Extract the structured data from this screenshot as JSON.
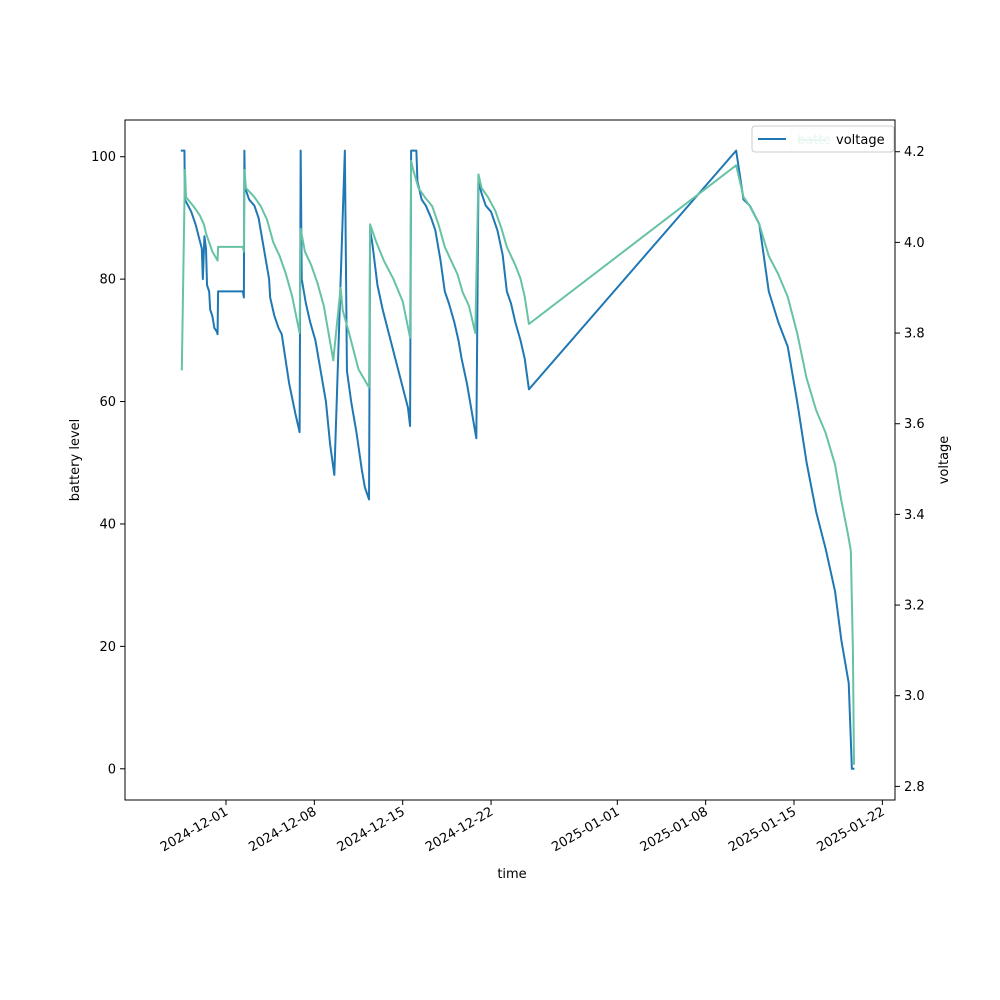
{
  "chart_data": {
    "type": "line",
    "xlabel": "time",
    "ylabel_left": "battery level",
    "ylabel_right": "voltage",
    "x_tick_labels": [
      "2024-12-01",
      "2024-12-08",
      "2024-12-15",
      "2024-12-22",
      "2025-01-01",
      "2025-01-08",
      "2025-01-15",
      "2025-01-22"
    ],
    "y_left_ticks": [
      0,
      20,
      40,
      60,
      80,
      100
    ],
    "y_right_ticks": [
      2.8,
      3.0,
      3.2,
      3.4,
      3.6,
      3.8,
      4.0,
      4.2
    ],
    "ylim_left": [
      -5.1,
      106
    ],
    "ylim_right": [
      2.77,
      4.27
    ],
    "xlim": [
      "2024-11-23",
      "2025-01-23"
    ],
    "grid": false,
    "legends": [
      {
        "position": "top-right",
        "entries": [
          "battery"
        ],
        "occluded": true
      },
      {
        "position": "top-right",
        "entries": [
          "voltage"
        ]
      }
    ],
    "series": [
      {
        "name": "battery",
        "axis": "left",
        "color": "#1f77b4",
        "points": [
          [
            "2024-11-27T12:00",
            101
          ],
          [
            "2024-11-27T17:00",
            101
          ],
          [
            "2024-11-27T18:00",
            93
          ],
          [
            "2024-11-28T06:00",
            91
          ],
          [
            "2024-11-28T14:00",
            89
          ],
          [
            "2024-11-28T20:00",
            87
          ],
          [
            "2024-11-29T02:00",
            85
          ],
          [
            "2024-11-29T04:00",
            80
          ],
          [
            "2024-11-29T07:00",
            87
          ],
          [
            "2024-11-29T10:00",
            85
          ],
          [
            "2024-11-29T12:00",
            79
          ],
          [
            "2024-11-29T16:00",
            78
          ],
          [
            "2024-11-29T18:00",
            75
          ],
          [
            "2024-11-29T22:00",
            74
          ],
          [
            "2024-11-30T02:00",
            72
          ],
          [
            "2024-11-30T06:00",
            71.5
          ],
          [
            "2024-11-30T08:00",
            71
          ],
          [
            "2024-11-30T09:00",
            78
          ],
          [
            "2024-12-01T20:00",
            78
          ],
          [
            "2024-12-02T08:00",
            78
          ],
          [
            "2024-12-02T10:00",
            77
          ],
          [
            "2024-12-02T11:00",
            101
          ],
          [
            "2024-12-02T12:00",
            95
          ],
          [
            "2024-12-02T20:00",
            93
          ],
          [
            "2024-12-03T06:00",
            92
          ],
          [
            "2024-12-03T14:00",
            90
          ],
          [
            "2024-12-04T00:00",
            85
          ],
          [
            "2024-12-04T10:00",
            80
          ],
          [
            "2024-12-04T12:00",
            77
          ],
          [
            "2024-12-04T20:00",
            74
          ],
          [
            "2024-12-05T04:00",
            72
          ],
          [
            "2024-12-05T10:00",
            71
          ],
          [
            "2024-12-06T00:00",
            63
          ],
          [
            "2024-12-06T12:00",
            58
          ],
          [
            "2024-12-06T20:00",
            55
          ],
          [
            "2024-12-06T22:00",
            101
          ],
          [
            "2024-12-07T00:00",
            80
          ],
          [
            "2024-12-07T08:00",
            76
          ],
          [
            "2024-12-07T16:00",
            73
          ],
          [
            "2024-12-08T02:00",
            70
          ],
          [
            "2024-12-08T12:00",
            65
          ],
          [
            "2024-12-08T22:00",
            60
          ],
          [
            "2024-12-09T06:00",
            53
          ],
          [
            "2024-12-09T14:00",
            48
          ],
          [
            "2024-12-10T10:00",
            101
          ],
          [
            "2024-12-10T14:00",
            65
          ],
          [
            "2024-12-10T22:00",
            60
          ],
          [
            "2024-12-11T08:00",
            55
          ],
          [
            "2024-12-11T18:00",
            49
          ],
          [
            "2024-12-12T00:00",
            46
          ],
          [
            "2024-12-12T08:00",
            44
          ],
          [
            "2024-12-12T10:00",
            88
          ],
          [
            "2024-12-12T14:00",
            86
          ],
          [
            "2024-12-13T00:00",
            79
          ],
          [
            "2024-12-13T10:00",
            75
          ],
          [
            "2024-12-13T22:00",
            71
          ],
          [
            "2024-12-14T10:00",
            67
          ],
          [
            "2024-12-14T22:00",
            63
          ],
          [
            "2024-12-15T10:00",
            59
          ],
          [
            "2024-12-15T14:00",
            56
          ],
          [
            "2024-12-15T16:00",
            101
          ],
          [
            "2024-12-16T02:00",
            101
          ],
          [
            "2024-12-16T04:00",
            96
          ],
          [
            "2024-12-16T12:00",
            93
          ],
          [
            "2024-12-16T20:00",
            92
          ],
          [
            "2024-12-17T06:00",
            90
          ],
          [
            "2024-12-17T14:00",
            88
          ],
          [
            "2024-12-18T00:00",
            83
          ],
          [
            "2024-12-18T08:00",
            78
          ],
          [
            "2024-12-18T16:00",
            76
          ],
          [
            "2024-12-19T02:00",
            73
          ],
          [
            "2024-12-19T10:00",
            70
          ],
          [
            "2024-12-19T16:00",
            67
          ],
          [
            "2024-12-20T02:00",
            63
          ],
          [
            "2024-12-20T14:00",
            57
          ],
          [
            "2024-12-20T20:00",
            54
          ],
          [
            "2024-12-21T00:00",
            96
          ],
          [
            "2024-12-21T06:00",
            94
          ],
          [
            "2024-12-21T14:00",
            92
          ],
          [
            "2024-12-22T00:00",
            91
          ],
          [
            "2024-12-22T12:00",
            88
          ],
          [
            "2024-12-22T22:00",
            84
          ],
          [
            "2024-12-23T06:00",
            78
          ],
          [
            "2024-12-23T14:00",
            76
          ],
          [
            "2024-12-23T22:00",
            73
          ],
          [
            "2024-12-24T08:00",
            70
          ],
          [
            "2024-12-24T16:00",
            67
          ],
          [
            "2024-12-25T00:00",
            62
          ],
          [
            "2025-01-10T10:00",
            101
          ],
          [
            "2025-01-11T00:00",
            93
          ],
          [
            "2025-01-11T12:00",
            92
          ],
          [
            "2025-01-12T06:00",
            89
          ],
          [
            "2025-01-13T00:00",
            78
          ],
          [
            "2025-01-13T18:00",
            73
          ],
          [
            "2025-01-14T12:00",
            69
          ],
          [
            "2025-01-15T06:00",
            60
          ],
          [
            "2025-01-16T00:00",
            50
          ],
          [
            "2025-01-16T18:00",
            42
          ],
          [
            "2025-01-17T12:00",
            36
          ],
          [
            "2025-01-18T06:00",
            29
          ],
          [
            "2025-01-18T18:00",
            21
          ],
          [
            "2025-01-19T08:00",
            14
          ],
          [
            "2025-01-19T14:00",
            0
          ],
          [
            "2025-01-19T17:00",
            0
          ]
        ]
      },
      {
        "name": "voltage",
        "axis": "right",
        "color": "#66c2a5",
        "points": [
          [
            "2024-11-27T12:00",
            3.72
          ],
          [
            "2024-11-27T18:00",
            4.16
          ],
          [
            "2024-11-27T20:00",
            4.1
          ],
          [
            "2024-11-28T10:00",
            4.08
          ],
          [
            "2024-11-28T22:00",
            4.06
          ],
          [
            "2024-11-29T06:00",
            4.04
          ],
          [
            "2024-11-29T10:00",
            4.02
          ],
          [
            "2024-11-29T22:00",
            3.98
          ],
          [
            "2024-11-30T08:00",
            3.96
          ],
          [
            "2024-11-30T09:00",
            3.99
          ],
          [
            "2024-12-02T08:00",
            3.99
          ],
          [
            "2024-12-02T10:00",
            3.98
          ],
          [
            "2024-12-02T11:00",
            4.16
          ],
          [
            "2024-12-02T14:00",
            4.12
          ],
          [
            "2024-12-03T06:00",
            4.1
          ],
          [
            "2024-12-03T18:00",
            4.08
          ],
          [
            "2024-12-04T06:00",
            4.05
          ],
          [
            "2024-12-04T18:00",
            4.0
          ],
          [
            "2024-12-05T06:00",
            3.97
          ],
          [
            "2024-12-05T18:00",
            3.93
          ],
          [
            "2024-12-06T06:00",
            3.88
          ],
          [
            "2024-12-06T20:00",
            3.8
          ],
          [
            "2024-12-06T22:00",
            4.03
          ],
          [
            "2024-12-07T06:00",
            3.98
          ],
          [
            "2024-12-07T18:00",
            3.95
          ],
          [
            "2024-12-08T06:00",
            3.91
          ],
          [
            "2024-12-08T18:00",
            3.86
          ],
          [
            "2024-12-09T12:00",
            3.74
          ],
          [
            "2024-12-10T02:00",
            3.9
          ],
          [
            "2024-12-10T06:00",
            3.85
          ],
          [
            "2024-12-10T18:00",
            3.8
          ],
          [
            "2024-12-11T12:00",
            3.72
          ],
          [
            "2024-12-12T08:00",
            3.68
          ],
          [
            "2024-12-12T10:00",
            4.04
          ],
          [
            "2024-12-12T22:00",
            4.0
          ],
          [
            "2024-12-13T12:00",
            3.96
          ],
          [
            "2024-12-14T06:00",
            3.92
          ],
          [
            "2024-12-15T00:00",
            3.87
          ],
          [
            "2024-12-15T14:00",
            3.79
          ],
          [
            "2024-12-15T16:00",
            4.18
          ],
          [
            "2024-12-15T20:00",
            4.16
          ],
          [
            "2024-12-16T06:00",
            4.12
          ],
          [
            "2024-12-16T18:00",
            4.1
          ],
          [
            "2024-12-17T08:00",
            4.08
          ],
          [
            "2024-12-17T20:00",
            4.04
          ],
          [
            "2024-12-18T08:00",
            3.99
          ],
          [
            "2024-12-18T20:00",
            3.96
          ],
          [
            "2024-12-19T08:00",
            3.93
          ],
          [
            "2024-12-19T18:00",
            3.89
          ],
          [
            "2024-12-20T06:00",
            3.86
          ],
          [
            "2024-12-20T18:00",
            3.8
          ],
          [
            "2024-12-21T00:00",
            4.15
          ],
          [
            "2024-12-21T06:00",
            4.12
          ],
          [
            "2024-12-21T18:00",
            4.1
          ],
          [
            "2024-12-22T08:00",
            4.07
          ],
          [
            "2024-12-22T20:00",
            4.03
          ],
          [
            "2024-12-23T06:00",
            3.99
          ],
          [
            "2024-12-23T14:00",
            3.97
          ],
          [
            "2024-12-23T22:00",
            3.95
          ],
          [
            "2024-12-24T08:00",
            3.92
          ],
          [
            "2024-12-24T16:00",
            3.88
          ],
          [
            "2024-12-25T00:00",
            3.82
          ],
          [
            "2025-01-10T10:00",
            4.17
          ],
          [
            "2025-01-11T00:00",
            4.1
          ],
          [
            "2025-01-11T12:00",
            4.08
          ],
          [
            "2025-01-12T06:00",
            4.04
          ],
          [
            "2025-01-13T00:00",
            3.97
          ],
          [
            "2025-01-13T18:00",
            3.93
          ],
          [
            "2025-01-14T12:00",
            3.88
          ],
          [
            "2025-01-15T06:00",
            3.8
          ],
          [
            "2025-01-16T00:00",
            3.7
          ],
          [
            "2025-01-16T18:00",
            3.63
          ],
          [
            "2025-01-17T12:00",
            3.58
          ],
          [
            "2025-01-18T06:00",
            3.51
          ],
          [
            "2025-01-18T18:00",
            3.43
          ],
          [
            "2025-01-19T06:00",
            3.36
          ],
          [
            "2025-01-19T12:00",
            3.32
          ],
          [
            "2025-01-19T16:00",
            3.1
          ],
          [
            "2025-01-19T18:00",
            2.85
          ]
        ]
      }
    ]
  }
}
